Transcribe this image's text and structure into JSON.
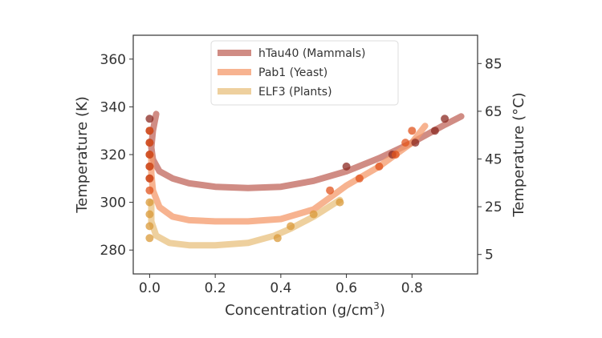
{
  "chart_data": {
    "type": "scatter",
    "xlabel": "Concentration (g/cm",
    "xlabel_sup": "3",
    "xlabel_end": ")",
    "ylabel": "Temperature (K)",
    "ylabel_right": "Temperature (°C)",
    "xlim": [
      -0.05,
      1.0
    ],
    "ylim": [
      270,
      370
    ],
    "xticks": [
      0.0,
      0.2,
      0.4,
      0.6,
      0.8
    ],
    "xtick_labels": [
      "0.0",
      "0.2",
      "0.4",
      "0.6",
      "0.8"
    ],
    "yticks": [
      280,
      300,
      320,
      340,
      360
    ],
    "ytick_labels": [
      "280",
      "300",
      "320",
      "340",
      "360"
    ],
    "yticks_right_K": [
      278.15,
      298.15,
      318.15,
      338.15,
      358.15
    ],
    "ytick_right_labels": [
      "5",
      "25",
      "45",
      "65",
      "85"
    ],
    "legend_position": "top-center",
    "series": [
      {
        "name": "hTau40 (Mammals)",
        "color": "#c0655b",
        "point_color": "#8b2a22",
        "curve": [
          [
            0.02,
            337
          ],
          [
            0.01,
            330
          ],
          [
            0.005,
            323
          ],
          [
            0.01,
            318
          ],
          [
            0.03,
            313
          ],
          [
            0.07,
            310
          ],
          [
            0.12,
            308
          ],
          [
            0.2,
            306.5
          ],
          [
            0.3,
            306
          ],
          [
            0.4,
            306.5
          ],
          [
            0.5,
            309
          ],
          [
            0.6,
            313
          ],
          [
            0.7,
            318.5
          ],
          [
            0.8,
            325
          ],
          [
            0.9,
            332.5
          ],
          [
            0.95,
            336
          ]
        ],
        "points": [
          [
            0.0,
            335
          ],
          [
            0.0,
            330
          ],
          [
            0.0,
            325
          ],
          [
            0.0,
            320
          ],
          [
            0.0,
            315
          ],
          [
            0.0,
            310
          ],
          [
            0.6,
            315
          ],
          [
            0.74,
            320
          ],
          [
            0.81,
            325
          ],
          [
            0.87,
            330
          ],
          [
            0.9,
            335
          ]
        ]
      },
      {
        "name": "Pab1 (Yeast)",
        "color": "#f49a6b",
        "point_color": "#e0531c",
        "curve": [
          [
            0.005,
            320
          ],
          [
            0.005,
            312
          ],
          [
            0.01,
            305
          ],
          [
            0.03,
            298
          ],
          [
            0.07,
            294
          ],
          [
            0.12,
            292.5
          ],
          [
            0.2,
            292
          ],
          [
            0.3,
            292
          ],
          [
            0.4,
            293
          ],
          [
            0.5,
            297
          ],
          [
            0.56,
            303
          ],
          [
            0.6,
            307
          ],
          [
            0.7,
            315
          ],
          [
            0.8,
            325
          ],
          [
            0.84,
            332
          ]
        ],
        "points": [
          [
            0.0,
            330
          ],
          [
            0.0,
            325
          ],
          [
            0.0,
            320
          ],
          [
            0.0,
            315
          ],
          [
            0.0,
            310
          ],
          [
            0.0,
            305
          ],
          [
            0.55,
            305
          ],
          [
            0.64,
            310
          ],
          [
            0.7,
            315
          ],
          [
            0.75,
            320
          ],
          [
            0.78,
            325
          ],
          [
            0.8,
            330
          ]
        ]
      },
      {
        "name": "ELF3 (Plants)",
        "color": "#e8c07e",
        "point_color": "#d99a38",
        "curve": [
          [
            0.005,
            300
          ],
          [
            0.005,
            292
          ],
          [
            0.02,
            286
          ],
          [
            0.06,
            283
          ],
          [
            0.12,
            282
          ],
          [
            0.2,
            282
          ],
          [
            0.3,
            283
          ],
          [
            0.38,
            286
          ],
          [
            0.43,
            289
          ],
          [
            0.5,
            294
          ],
          [
            0.58,
            301
          ]
        ],
        "points": [
          [
            0.0,
            300
          ],
          [
            0.0,
            295
          ],
          [
            0.0,
            290
          ],
          [
            0.0,
            285
          ],
          [
            0.39,
            285
          ],
          [
            0.43,
            290
          ],
          [
            0.5,
            295
          ],
          [
            0.58,
            300
          ]
        ]
      }
    ]
  }
}
